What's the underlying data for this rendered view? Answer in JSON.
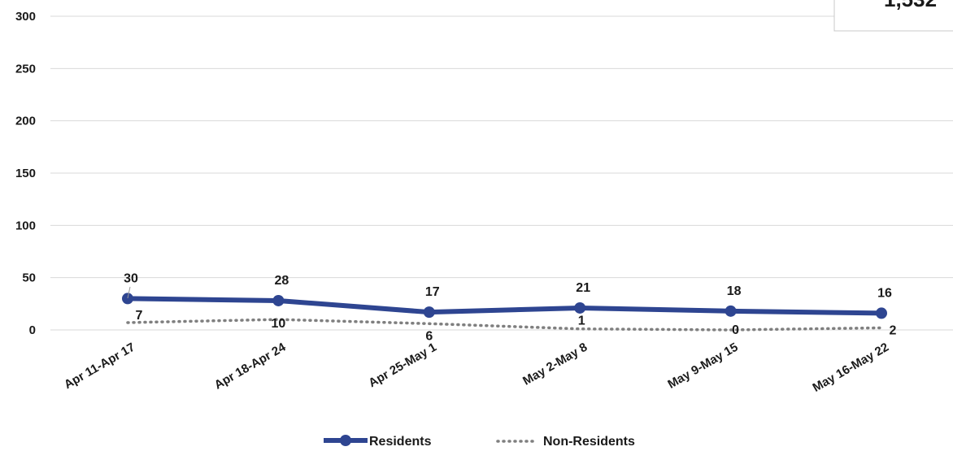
{
  "chart_data": {
    "type": "line",
    "categories": [
      "Apr 11-Apr 17",
      "Apr 18-Apr 24",
      "Apr 25-May 1",
      "May 2-May 8",
      "May 9-May 15",
      "May 16-May 22"
    ],
    "series": [
      {
        "name": "Residents",
        "values": [
          30,
          28,
          17,
          21,
          18,
          16
        ],
        "color": "#2e4591",
        "style": "solid-with-markers"
      },
      {
        "name": "Non-Residents",
        "values": [
          7,
          10,
          6,
          1,
          0,
          2
        ],
        "color": "#7f7f7f",
        "style": "dotted"
      }
    ],
    "ylim": [
      0,
      300
    ],
    "yticks": [
      "0",
      "50",
      "100",
      "150",
      "200",
      "250",
      "300"
    ],
    "grid": true,
    "legend_position": "bottom-center",
    "corner_box_text": "1,532"
  }
}
